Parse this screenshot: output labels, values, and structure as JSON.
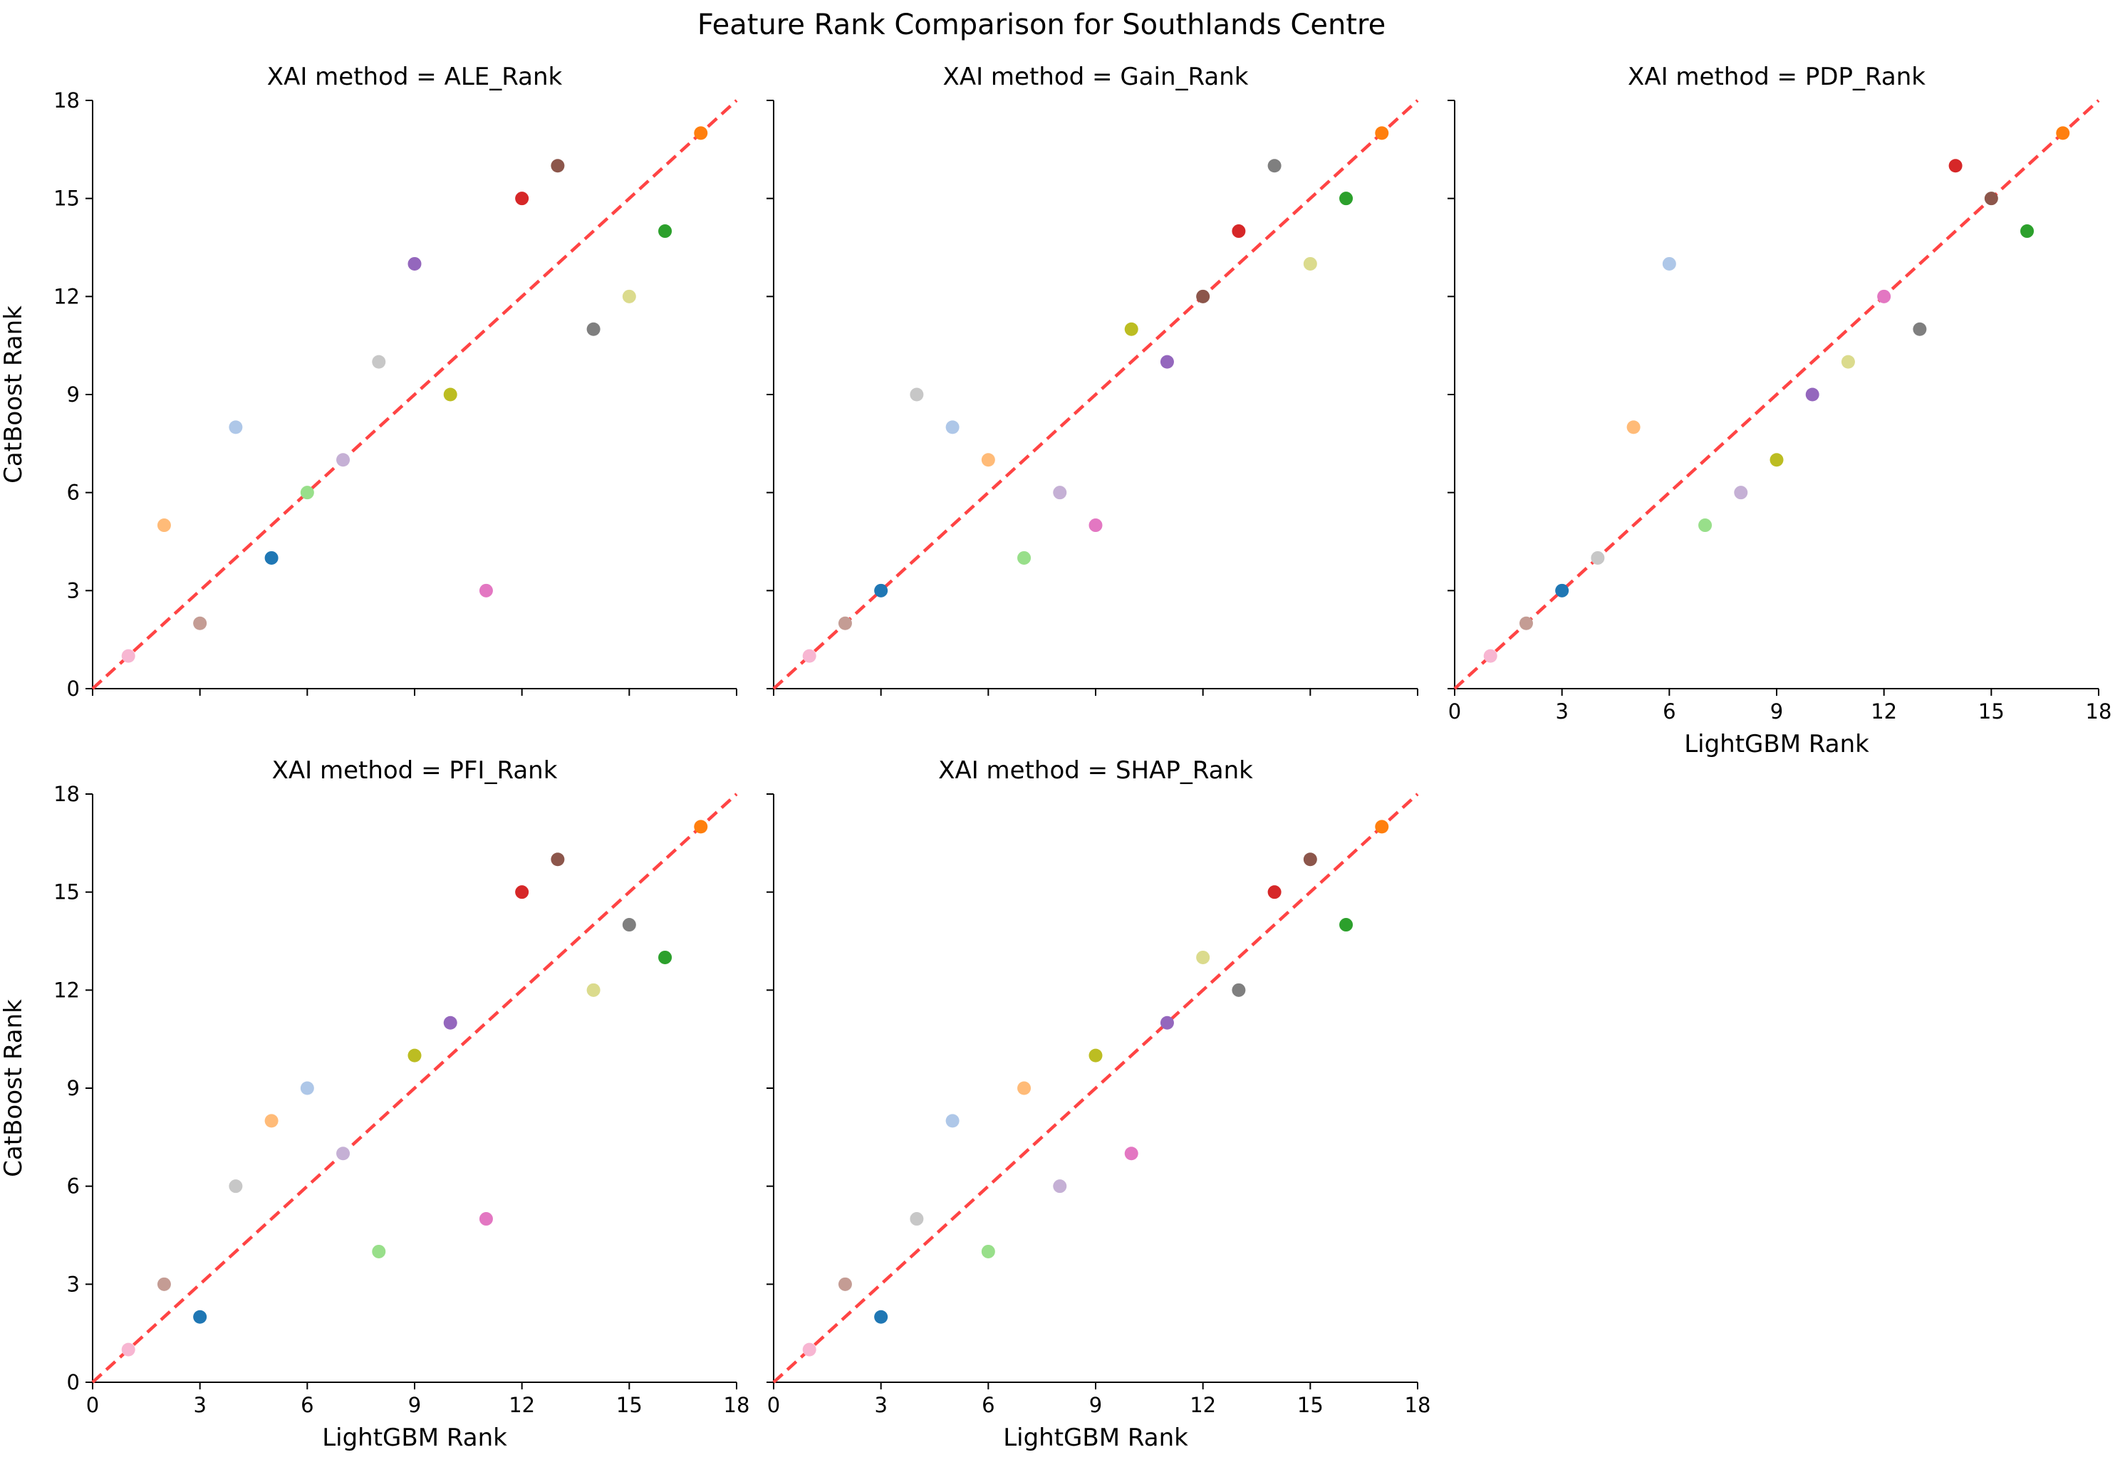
{
  "chart_data": {
    "type": "scatter",
    "title": "Feature Rank Comparison for Southlands Centre",
    "xlabel": "LightGBM Rank",
    "ylabel": "CatBoost Rank",
    "xlim": [
      0,
      18
    ],
    "ylim": [
      0,
      18
    ],
    "ticks": [
      0,
      3,
      6,
      9,
      12,
      15,
      18
    ],
    "reference_line": {
      "from": [
        0,
        0
      ],
      "to": [
        18,
        18
      ],
      "style": "dashed",
      "color": "#ff4444"
    },
    "grid": false,
    "legend": "none",
    "point_colors": [
      "#ff7f0e",
      "#8c564b",
      "#d62728",
      "#2ca02c",
      "#7f7f7f",
      "#dbdb8d",
      "#9467bd",
      "#bcbd22",
      "#c7c7c7",
      "#aec7e8",
      "#c5b0d5",
      "#98df8a",
      "#1f77b4",
      "#ffbb78",
      "#e377c2",
      "#c49c94",
      "#f7b6d2"
    ],
    "panels": [
      {
        "subtitle": "XAI method = ALE_Rank",
        "points": [
          [
            17,
            17
          ],
          [
            13,
            16
          ],
          [
            12,
            15
          ],
          [
            16,
            14
          ],
          [
            14,
            11
          ],
          [
            15,
            12
          ],
          [
            9,
            13
          ],
          [
            10,
            9
          ],
          [
            8,
            10
          ],
          [
            4,
            8
          ],
          [
            7,
            7
          ],
          [
            6,
            6
          ],
          [
            5,
            4
          ],
          [
            2,
            5
          ],
          [
            11,
            3
          ],
          [
            3,
            2
          ],
          [
            1,
            1
          ]
        ]
      },
      {
        "subtitle": "XAI method = Gain_Rank",
        "points": [
          [
            17,
            17
          ],
          [
            12,
            12
          ],
          [
            13,
            14
          ],
          [
            16,
            15
          ],
          [
            14,
            16
          ],
          [
            15,
            13
          ],
          [
            11,
            10
          ],
          [
            10,
            11
          ],
          [
            4,
            9
          ],
          [
            5,
            8
          ],
          [
            8,
            6
          ],
          [
            7,
            4
          ],
          [
            3,
            3
          ],
          [
            6,
            7
          ],
          [
            9,
            5
          ],
          [
            2,
            2
          ],
          [
            1,
            1
          ]
        ]
      },
      {
        "subtitle": "XAI method = PDP_Rank",
        "points": [
          [
            17,
            17
          ],
          [
            15,
            15
          ],
          [
            14,
            16
          ],
          [
            16,
            14
          ],
          [
            13,
            11
          ],
          [
            11,
            10
          ],
          [
            10,
            9
          ],
          [
            9,
            7
          ],
          [
            4,
            4
          ],
          [
            6,
            13
          ],
          [
            8,
            6
          ],
          [
            7,
            5
          ],
          [
            3,
            3
          ],
          [
            5,
            8
          ],
          [
            12,
            12
          ],
          [
            2,
            2
          ],
          [
            1,
            1
          ]
        ]
      },
      {
        "subtitle": "XAI method = PFI_Rank",
        "points": [
          [
            17,
            17
          ],
          [
            13,
            16
          ],
          [
            12,
            15
          ],
          [
            16,
            13
          ],
          [
            15,
            14
          ],
          [
            14,
            12
          ],
          [
            10,
            11
          ],
          [
            9,
            10
          ],
          [
            4,
            6
          ],
          [
            6,
            9
          ],
          [
            7,
            7
          ],
          [
            8,
            4
          ],
          [
            3,
            2
          ],
          [
            5,
            8
          ],
          [
            11,
            5
          ],
          [
            2,
            3
          ],
          [
            1,
            1
          ]
        ]
      },
      {
        "subtitle": "XAI method = SHAP_Rank",
        "points": [
          [
            17,
            17
          ],
          [
            15,
            16
          ],
          [
            14,
            15
          ],
          [
            16,
            14
          ],
          [
            13,
            12
          ],
          [
            12,
            13
          ],
          [
            11,
            11
          ],
          [
            9,
            10
          ],
          [
            4,
            5
          ],
          [
            5,
            8
          ],
          [
            8,
            6
          ],
          [
            6,
            4
          ],
          [
            3,
            2
          ],
          [
            7,
            9
          ],
          [
            10,
            7
          ],
          [
            2,
            3
          ],
          [
            1,
            1
          ]
        ]
      }
    ]
  }
}
